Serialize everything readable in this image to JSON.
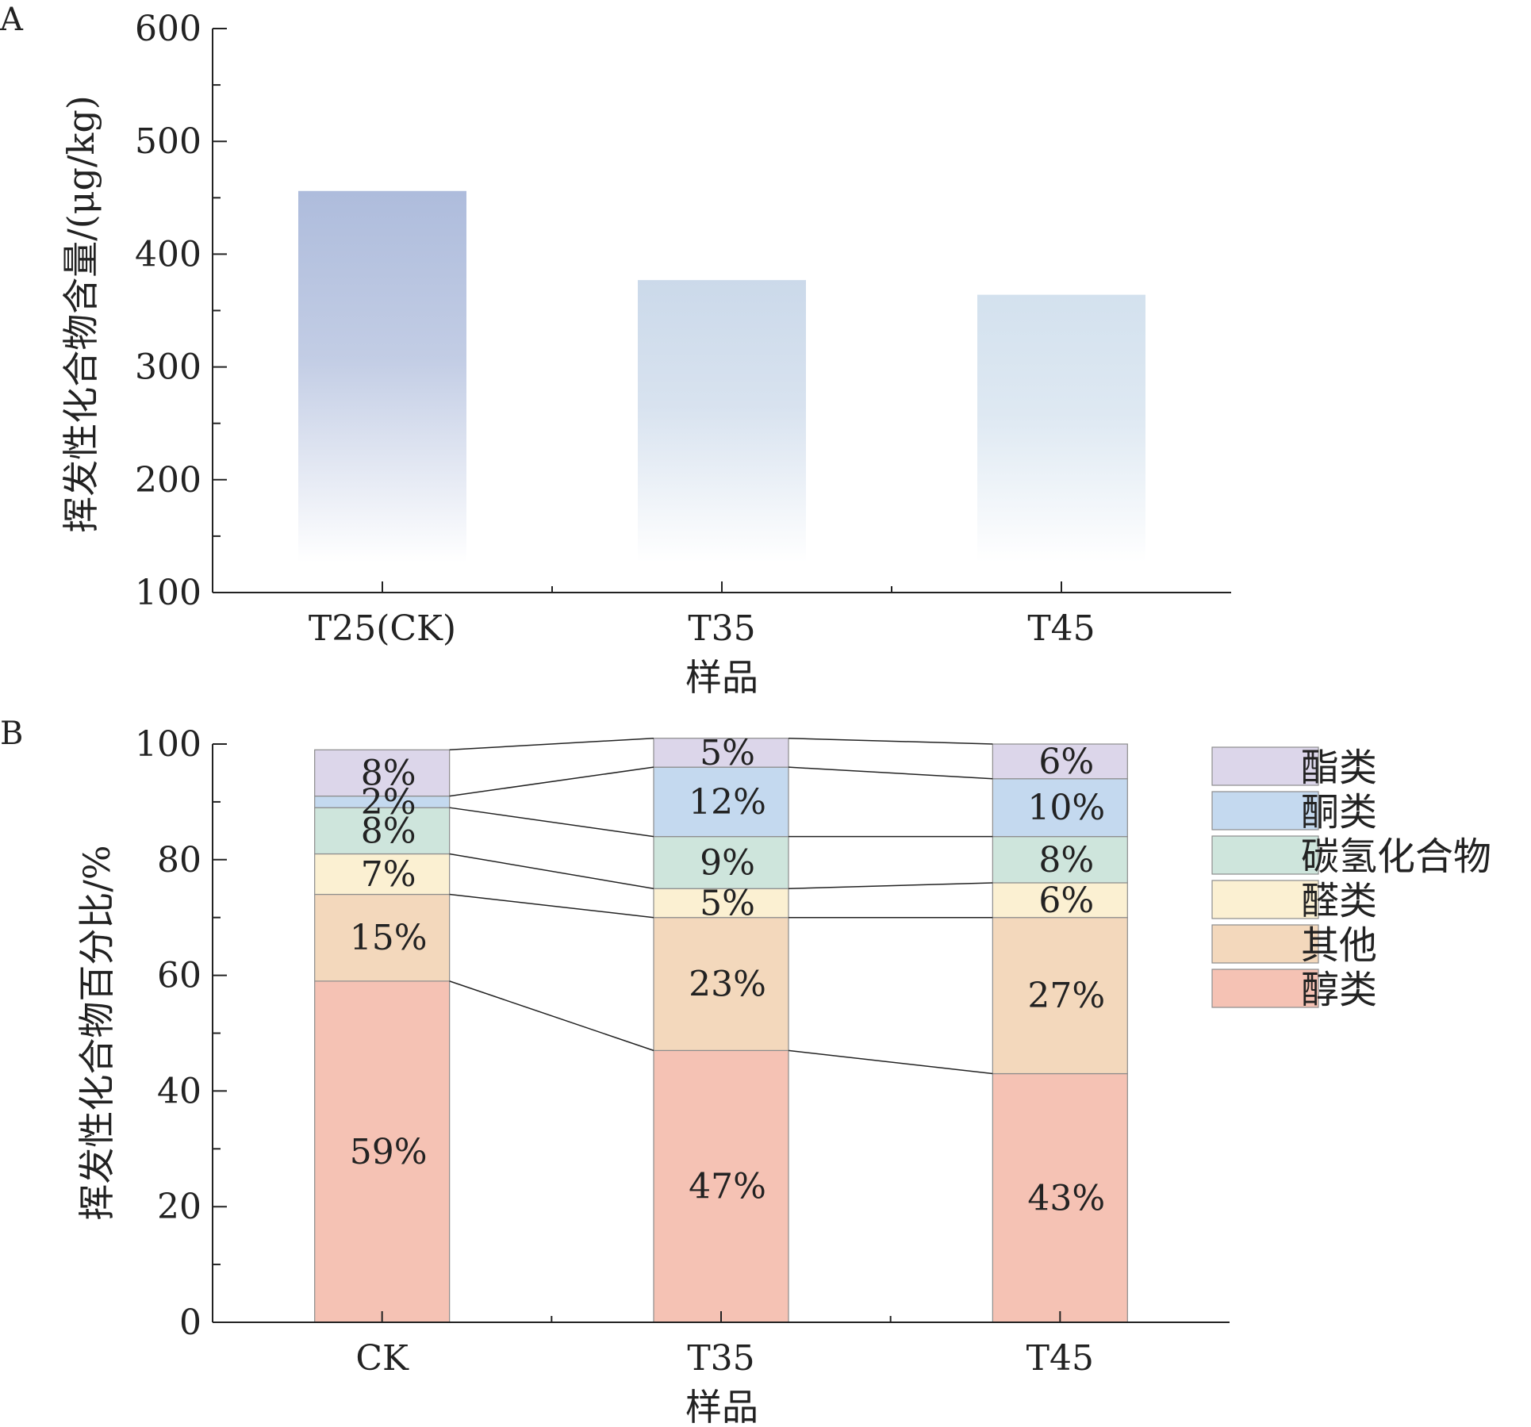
{
  "panel_a_label": "A",
  "panel_b_label": "B",
  "chart_data": [
    {
      "type": "bar",
      "panel": "A",
      "title": "",
      "xlabel": "样品",
      "ylabel": "挥发性化合物含量/(μg/kg)",
      "categories": [
        "T25(CK)",
        "T35",
        "T45"
      ],
      "values": [
        456,
        377,
        364
      ],
      "ylim": [
        100,
        600
      ],
      "yticks": [
        100,
        200,
        300,
        400,
        500,
        600
      ],
      "bar_colors": [
        "#aebcdc",
        "#cbd9ea",
        "#d3e1ee"
      ],
      "grid": false
    },
    {
      "type": "bar",
      "stacked": true,
      "panel": "B",
      "title": "",
      "xlabel": "样品",
      "ylabel": "挥发性化合物百分比/%",
      "categories": [
        "CK",
        "T35",
        "T45"
      ],
      "ylim": [
        0,
        100
      ],
      "yticks": [
        0,
        20,
        40,
        60,
        80,
        100
      ],
      "legend_position": "right",
      "connector_lines": true,
      "series": [
        {
          "name": "醇类",
          "color": "#f5c2b4",
          "values": [
            59,
            47,
            43
          ],
          "labels": [
            "59%",
            "47%",
            "43%"
          ]
        },
        {
          "name": "其他",
          "color": "#f3d8bc",
          "values": [
            15,
            23,
            27
          ],
          "labels": [
            "15%",
            "23%",
            "27%"
          ]
        },
        {
          "name": "醛类",
          "color": "#fbf0d2",
          "values": [
            7,
            5,
            6
          ],
          "labels": [
            "7%",
            "5%",
            "6%"
          ]
        },
        {
          "name": "碳氢化合物",
          "color": "#cee5dc",
          "values": [
            8,
            9,
            8
          ],
          "labels": [
            "8%",
            "9%",
            "8%"
          ]
        },
        {
          "name": "酮类",
          "color": "#c4d9ef",
          "values": [
            2,
            12,
            10
          ],
          "labels": [
            "2%",
            "12%",
            "10%"
          ]
        },
        {
          "name": "酯类",
          "color": "#dcd6ea",
          "values": [
            8,
            5,
            6
          ],
          "labels": [
            "8%",
            "5%",
            "6%"
          ]
        }
      ],
      "legend_order": [
        "酯类",
        "酮类",
        "碳氢化合物",
        "醛类",
        "其他",
        "醇类"
      ]
    }
  ]
}
